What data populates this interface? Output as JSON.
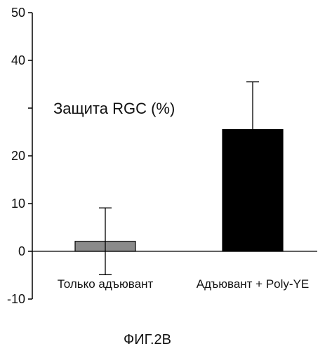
{
  "chart_data": {
    "type": "bar",
    "categories": [
      "Только адъювант",
      "Адъювант + Poly-YE"
    ],
    "values": [
      2.1,
      25.5
    ],
    "error": [
      7.0,
      10.0
    ],
    "ylim": [
      -10,
      50
    ],
    "yticks": [
      -10,
      0,
      10,
      20,
      30,
      40,
      50
    ],
    "ytick_labels": [
      "-10",
      "0",
      "10",
      "20",
      "40",
      "50"
    ],
    "annotation": "Защита RGC (%)",
    "colors": [
      "#8a8a8a",
      "#000000"
    ],
    "grid": false,
    "legend": "none"
  },
  "caption": "ФИГ.2В"
}
